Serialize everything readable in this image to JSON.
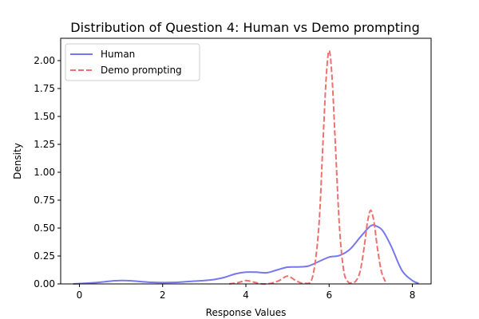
{
  "chart_data": {
    "type": "line",
    "title": "Distribution of Question 4: Human vs Demo prompting",
    "xlabel": "Response Values",
    "ylabel": "Density",
    "xlim": [
      -0.45,
      8.45
    ],
    "ylim": [
      0,
      2.2
    ],
    "xticks": [
      0,
      2,
      4,
      6,
      8
    ],
    "xtick_labels": [
      "0",
      "2",
      "4",
      "6",
      "8"
    ],
    "yticks": [
      0,
      0.25,
      0.5,
      0.75,
      1.0,
      1.25,
      1.5,
      1.75,
      2.0
    ],
    "ytick_labels": [
      "0.00",
      "0.25",
      "0.50",
      "0.75",
      "1.00",
      "1.25",
      "1.50",
      "1.75",
      "2.00"
    ],
    "grid": false,
    "legend_position": "top-left",
    "series": [
      {
        "name": "Human",
        "color": "#7777ee",
        "style": "solid",
        "x": [
          -0.15,
          0.0,
          0.25,
          0.5,
          0.75,
          1.0,
          1.25,
          1.5,
          1.75,
          2.0,
          2.25,
          2.5,
          2.75,
          3.0,
          3.25,
          3.5,
          3.75,
          4.0,
          4.25,
          4.5,
          4.75,
          5.0,
          5.25,
          5.5,
          5.75,
          6.0,
          6.25,
          6.5,
          6.75,
          7.0,
          7.15,
          7.3,
          7.5,
          7.75,
          8.0,
          8.15
        ],
        "y": [
          0.0,
          0.003,
          0.008,
          0.015,
          0.025,
          0.03,
          0.028,
          0.02,
          0.014,
          0.012,
          0.013,
          0.018,
          0.025,
          0.03,
          0.04,
          0.06,
          0.09,
          0.105,
          0.105,
          0.1,
          0.125,
          0.15,
          0.152,
          0.16,
          0.2,
          0.24,
          0.255,
          0.31,
          0.42,
          0.52,
          0.515,
          0.47,
          0.33,
          0.12,
          0.03,
          0.005
        ]
      },
      {
        "name": "Demo prompting",
        "color": "#f07070",
        "style": "dashed",
        "x": [
          3.6,
          3.8,
          4.0,
          4.2,
          4.4,
          4.6,
          4.8,
          5.0,
          5.2,
          5.4,
          5.6,
          5.75,
          5.85,
          5.93,
          6.0,
          6.07,
          6.15,
          6.25,
          6.35,
          6.45,
          6.55,
          6.65,
          6.75,
          6.85,
          6.92,
          7.0,
          7.08,
          7.15,
          7.25,
          7.35
        ],
        "y": [
          0.0,
          0.01,
          0.03,
          0.015,
          0.0,
          0.005,
          0.03,
          0.07,
          0.03,
          0.005,
          0.06,
          0.5,
          1.25,
          1.85,
          2.09,
          1.85,
          1.25,
          0.5,
          0.12,
          0.02,
          0.01,
          0.03,
          0.12,
          0.35,
          0.55,
          0.66,
          0.55,
          0.35,
          0.12,
          0.02
        ]
      }
    ]
  }
}
